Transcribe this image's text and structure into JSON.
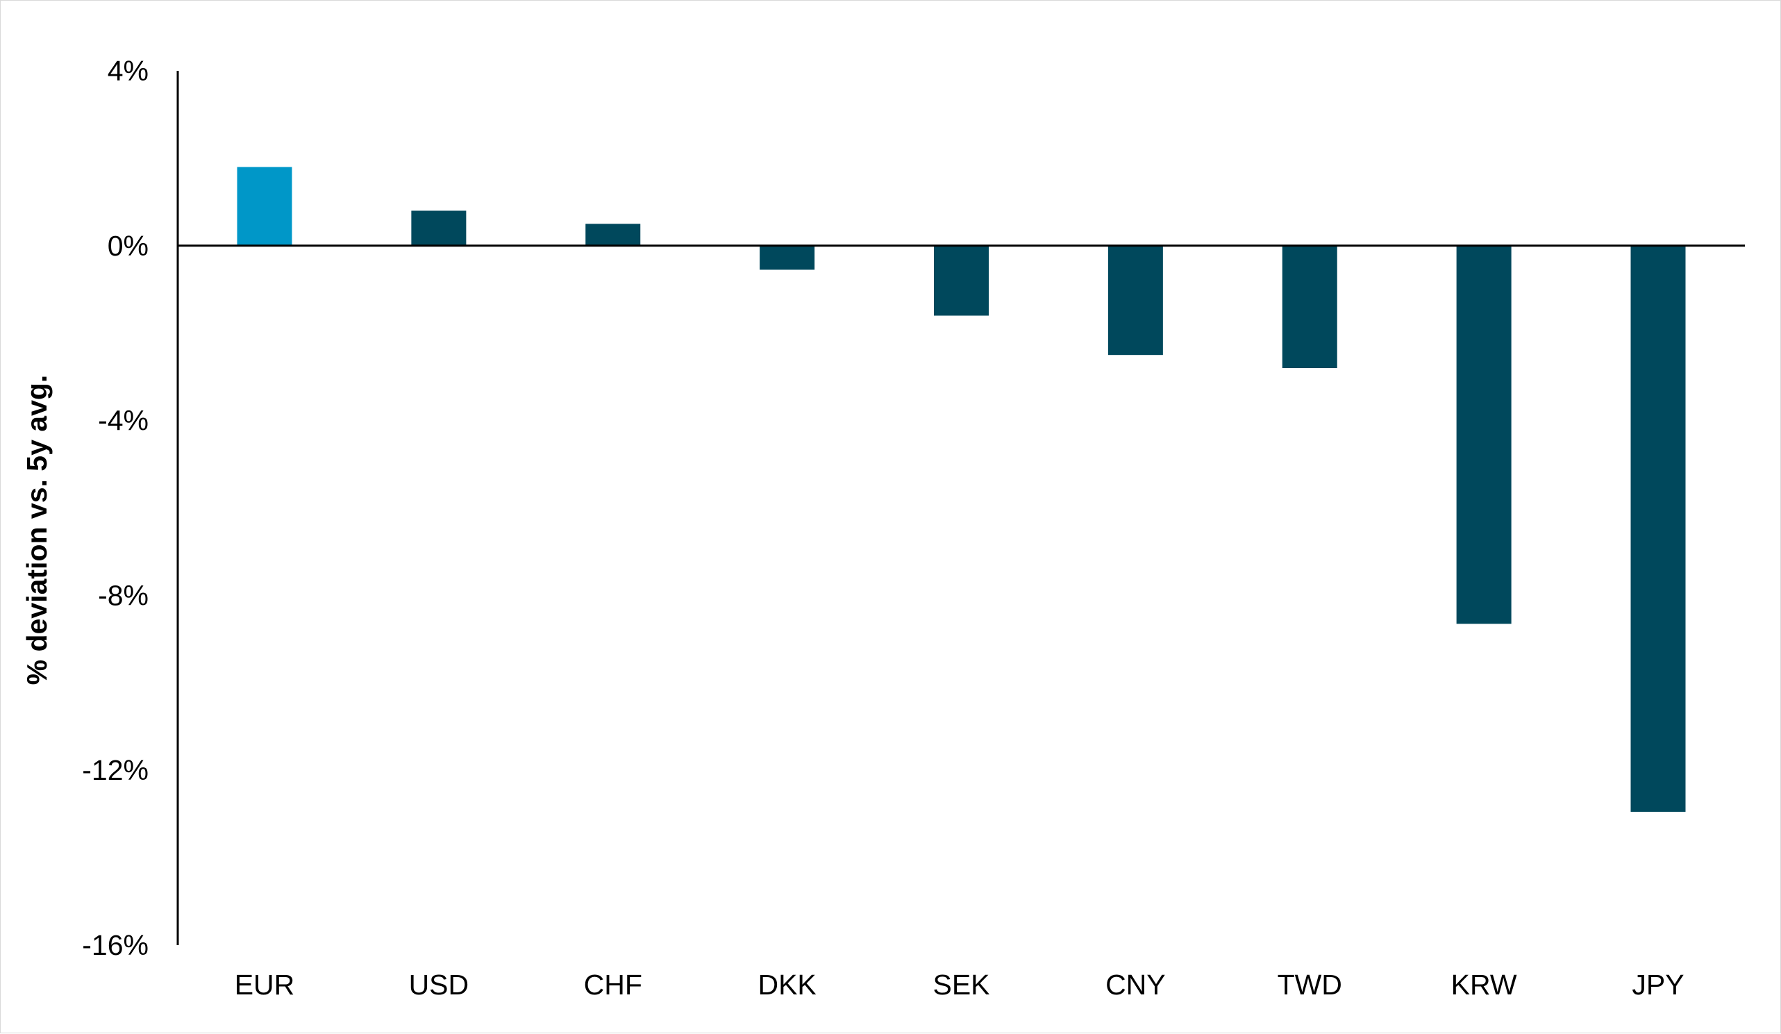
{
  "chart_data": {
    "type": "bar",
    "title": "",
    "xlabel": "",
    "ylabel": "% deviation vs. 5y avg.",
    "categories": [
      "EUR",
      "USD",
      "CHF",
      "DKK",
      "SEK",
      "CNY",
      "TWD",
      "KRW",
      "JPY"
    ],
    "series": [
      {
        "values": [
          1.8,
          0.8,
          0.5,
          -0.55,
          -1.6,
          -2.5,
          -2.8,
          -8.65,
          -12.95
        ]
      }
    ],
    "highlight_category": "EUR",
    "colors": {
      "highlight": "#0097c8",
      "default": "#00485c",
      "axis": "#000000"
    },
    "ylim": [
      -16,
      4
    ],
    "yticks": [
      4,
      0,
      -4,
      -8,
      -12,
      -16
    ],
    "ytick_labels": [
      "4%",
      "0%",
      "-4%",
      "-8%",
      "-12%",
      "-16%"
    ],
    "grid": false,
    "legend": "none"
  }
}
